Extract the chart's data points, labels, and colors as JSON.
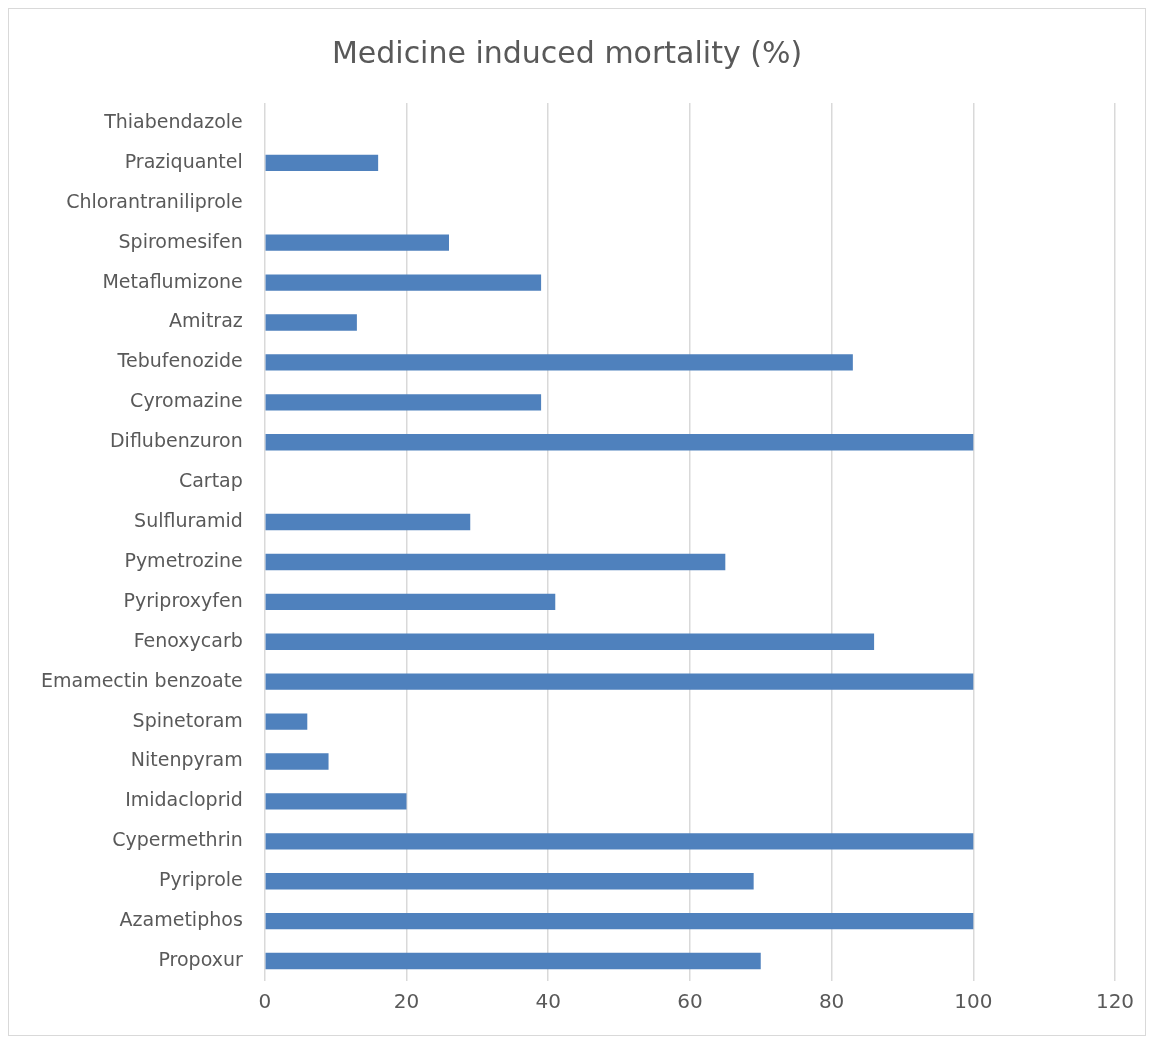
{
  "chart_data": {
    "type": "bar",
    "orientation": "horizontal",
    "title": "Medicine induced mortality (%)",
    "categories": [
      "Thiabendazole",
      "Praziquantel",
      "Chlorantraniliprole",
      "Spiromesifen",
      "Metaflumizone",
      "Amitraz",
      "Tebufenozide",
      "Cyromazine",
      "Diflubenzuron",
      "Cartap",
      "Sulfluramid",
      "Pymetrozine",
      "Pyriproxyfen",
      "Fenoxycarb",
      "Emamectin benzoate",
      "Spinetoram",
      "Nitenpyram",
      "Imidacloprid",
      "Cypermethrin",
      "Pyriprole",
      "Azametiphos",
      "Propoxur"
    ],
    "values": [
      0,
      16,
      0,
      26,
      39,
      13,
      83,
      39,
      100,
      0,
      29,
      65,
      41,
      86,
      100,
      6,
      9,
      20,
      100,
      69,
      100,
      70
    ],
    "color": "#4f81bd",
    "xlim": [
      0,
      120
    ],
    "xticks": [
      0,
      20,
      40,
      60,
      80,
      100,
      120
    ],
    "grid": "x"
  }
}
